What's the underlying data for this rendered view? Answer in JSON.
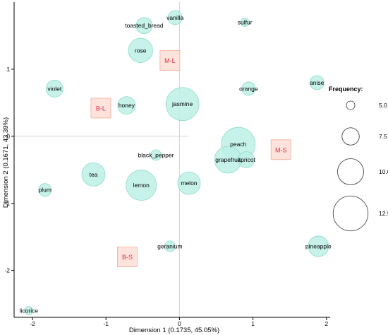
{
  "chart_data": {
    "type": "scatter",
    "subtype": "bubble",
    "xlabel": "Dimension 1  (0.1735,  45.05%)",
    "ylabel": "Dimension 2  (0.1671,  43.39%)",
    "xlim": [
      -2.25,
      2.05
    ],
    "ylim": [
      -2.7,
      2.0
    ],
    "x_ticks": [
      -2,
      -1,
      0,
      1,
      2
    ],
    "y_ticks": [
      -2,
      -1,
      0,
      1
    ],
    "grid": false,
    "reference_lines": {
      "x": 0,
      "y": 0
    },
    "colors": {
      "bubble_fill": "#bdf0e6",
      "bubble_stroke": "#8fdccd",
      "box_fill": "#fde0d8",
      "box_stroke": "#f3a999",
      "box_text": "#d9344a",
      "reference_line": "#d3d3d3",
      "axis": "#000000"
    },
    "points": [
      {
        "label": "vanilla",
        "x": -0.06,
        "y": 1.77,
        "size": 6.6
      },
      {
        "label": "sulfur",
        "x": 0.89,
        "y": 1.7,
        "size": 5.0
      },
      {
        "label": "toasted_bread",
        "x": -0.48,
        "y": 1.65,
        "size": 7.2
      },
      {
        "label": "rose",
        "x": -0.53,
        "y": 1.28,
        "size": 9.5
      },
      {
        "label": "anise",
        "x": 1.87,
        "y": 0.8,
        "size": 6.6
      },
      {
        "label": "violet",
        "x": -1.7,
        "y": 0.71,
        "size": 7.4
      },
      {
        "label": "orange",
        "x": 0.94,
        "y": 0.71,
        "size": 6.4
      },
      {
        "label": "honey",
        "x": -0.72,
        "y": 0.46,
        "size": 7.6
      },
      {
        "label": "jasmine",
        "x": 0.04,
        "y": 0.48,
        "size": 12.0
      },
      {
        "label": "peach",
        "x": 0.8,
        "y": -0.12,
        "size": 12.2
      },
      {
        "label": "grapefruit",
        "x": 0.66,
        "y": -0.35,
        "size": 10.2
      },
      {
        "label": "apricot",
        "x": 0.91,
        "y": -0.35,
        "size": 7.2
      },
      {
        "label": "black_pepper",
        "x": -0.32,
        "y": -0.28,
        "size": 5.6
      },
      {
        "label": "tea",
        "x": -1.17,
        "y": -0.57,
        "size": 9.2
      },
      {
        "label": "melon",
        "x": 0.13,
        "y": -0.7,
        "size": 9.0
      },
      {
        "label": "lemon",
        "x": -0.52,
        "y": -0.73,
        "size": 11.2
      },
      {
        "label": "plum",
        "x": -1.83,
        "y": -0.8,
        "size": 6.2
      },
      {
        "label": "geranium",
        "x": -0.13,
        "y": -1.64,
        "size": 5.6
      },
      {
        "label": "pineapple",
        "x": 1.89,
        "y": -1.64,
        "size": 8.4
      },
      {
        "label": "licorice",
        "x": -2.05,
        "y": -2.6,
        "size": 5.0
      }
    ],
    "groups": [
      {
        "label": "M-L",
        "x": -0.13,
        "y": 1.13
      },
      {
        "label": "B-L",
        "x": -1.07,
        "y": 0.42
      },
      {
        "label": "M-S",
        "x": 1.38,
        "y": -0.2
      },
      {
        "label": "B-S",
        "x": -0.71,
        "y": -1.8
      }
    ],
    "legend": {
      "title": "Frequency:",
      "position": "right",
      "entries": [
        {
          "label": "5.0",
          "value": 5.0
        },
        {
          "label": "7.5",
          "value": 7.5
        },
        {
          "label": "10.0",
          "value": 10.0
        },
        {
          "label": "12.5",
          "value": 12.5
        }
      ]
    }
  }
}
